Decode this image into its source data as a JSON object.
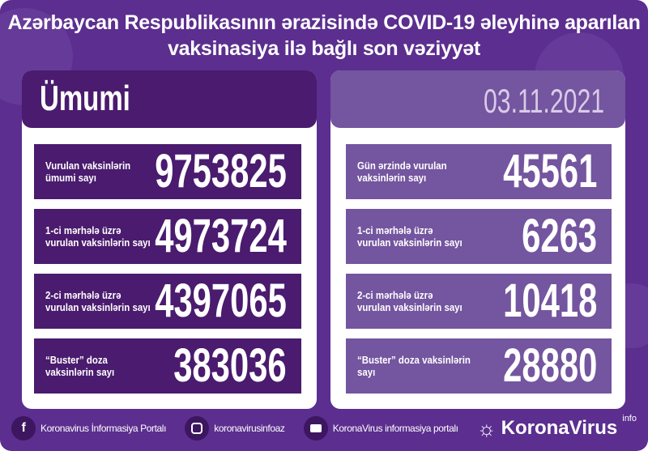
{
  "header": {
    "title_line1": "Azərbaycan Respublikasının ərazisində COVID-19 əleyhinə aparılan",
    "title_line2": "vaksinasiya ilə bağlı son vəziyyət"
  },
  "left": {
    "heading": "Ümumi",
    "rows": [
      {
        "label": "Vurulan vaksinlərin ümumi sayı",
        "value": "9753825"
      },
      {
        "label": "1-ci mərhələ üzrə vurulan vaksinlərin sayı",
        "value": "4973724"
      },
      {
        "label": "2-ci mərhələ üzrə vurulan vaksinlərin sayı",
        "value": "4397065"
      },
      {
        "label": "“Buster” doza vaksinlərin sayı",
        "value": "383036"
      }
    ]
  },
  "right": {
    "date": "03.11.2021",
    "rows": [
      {
        "label": "Gün ərzində vurulan vaksinlərin sayı",
        "value": "45561"
      },
      {
        "label": "1-ci mərhələ üzrə vurulan vaksinlərin sayı",
        "value": "6263"
      },
      {
        "label": "2-ci mərhələ üzrə vurulan vaksinlərin sayı",
        "value": "10418"
      },
      {
        "label": "“Buster” doza vaksinlərin sayı",
        "value": "28880"
      }
    ]
  },
  "footer": {
    "facebook": "Koronavirus İnformasiya Portalı",
    "instagram": "koronavirusinfoaz",
    "youtube": "KoronaVirus informasiya portalı",
    "logo_main": "KoronaVirus",
    "logo_sup": "info"
  },
  "colors": {
    "background": "#5b2e8f",
    "left_dark": "#4a1b6e",
    "right_light": "#74559f",
    "date": "#d9cbe9"
  },
  "icons": [
    "facebook-icon",
    "instagram-icon",
    "youtube-icon",
    "sun-virus-logo-icon"
  ]
}
